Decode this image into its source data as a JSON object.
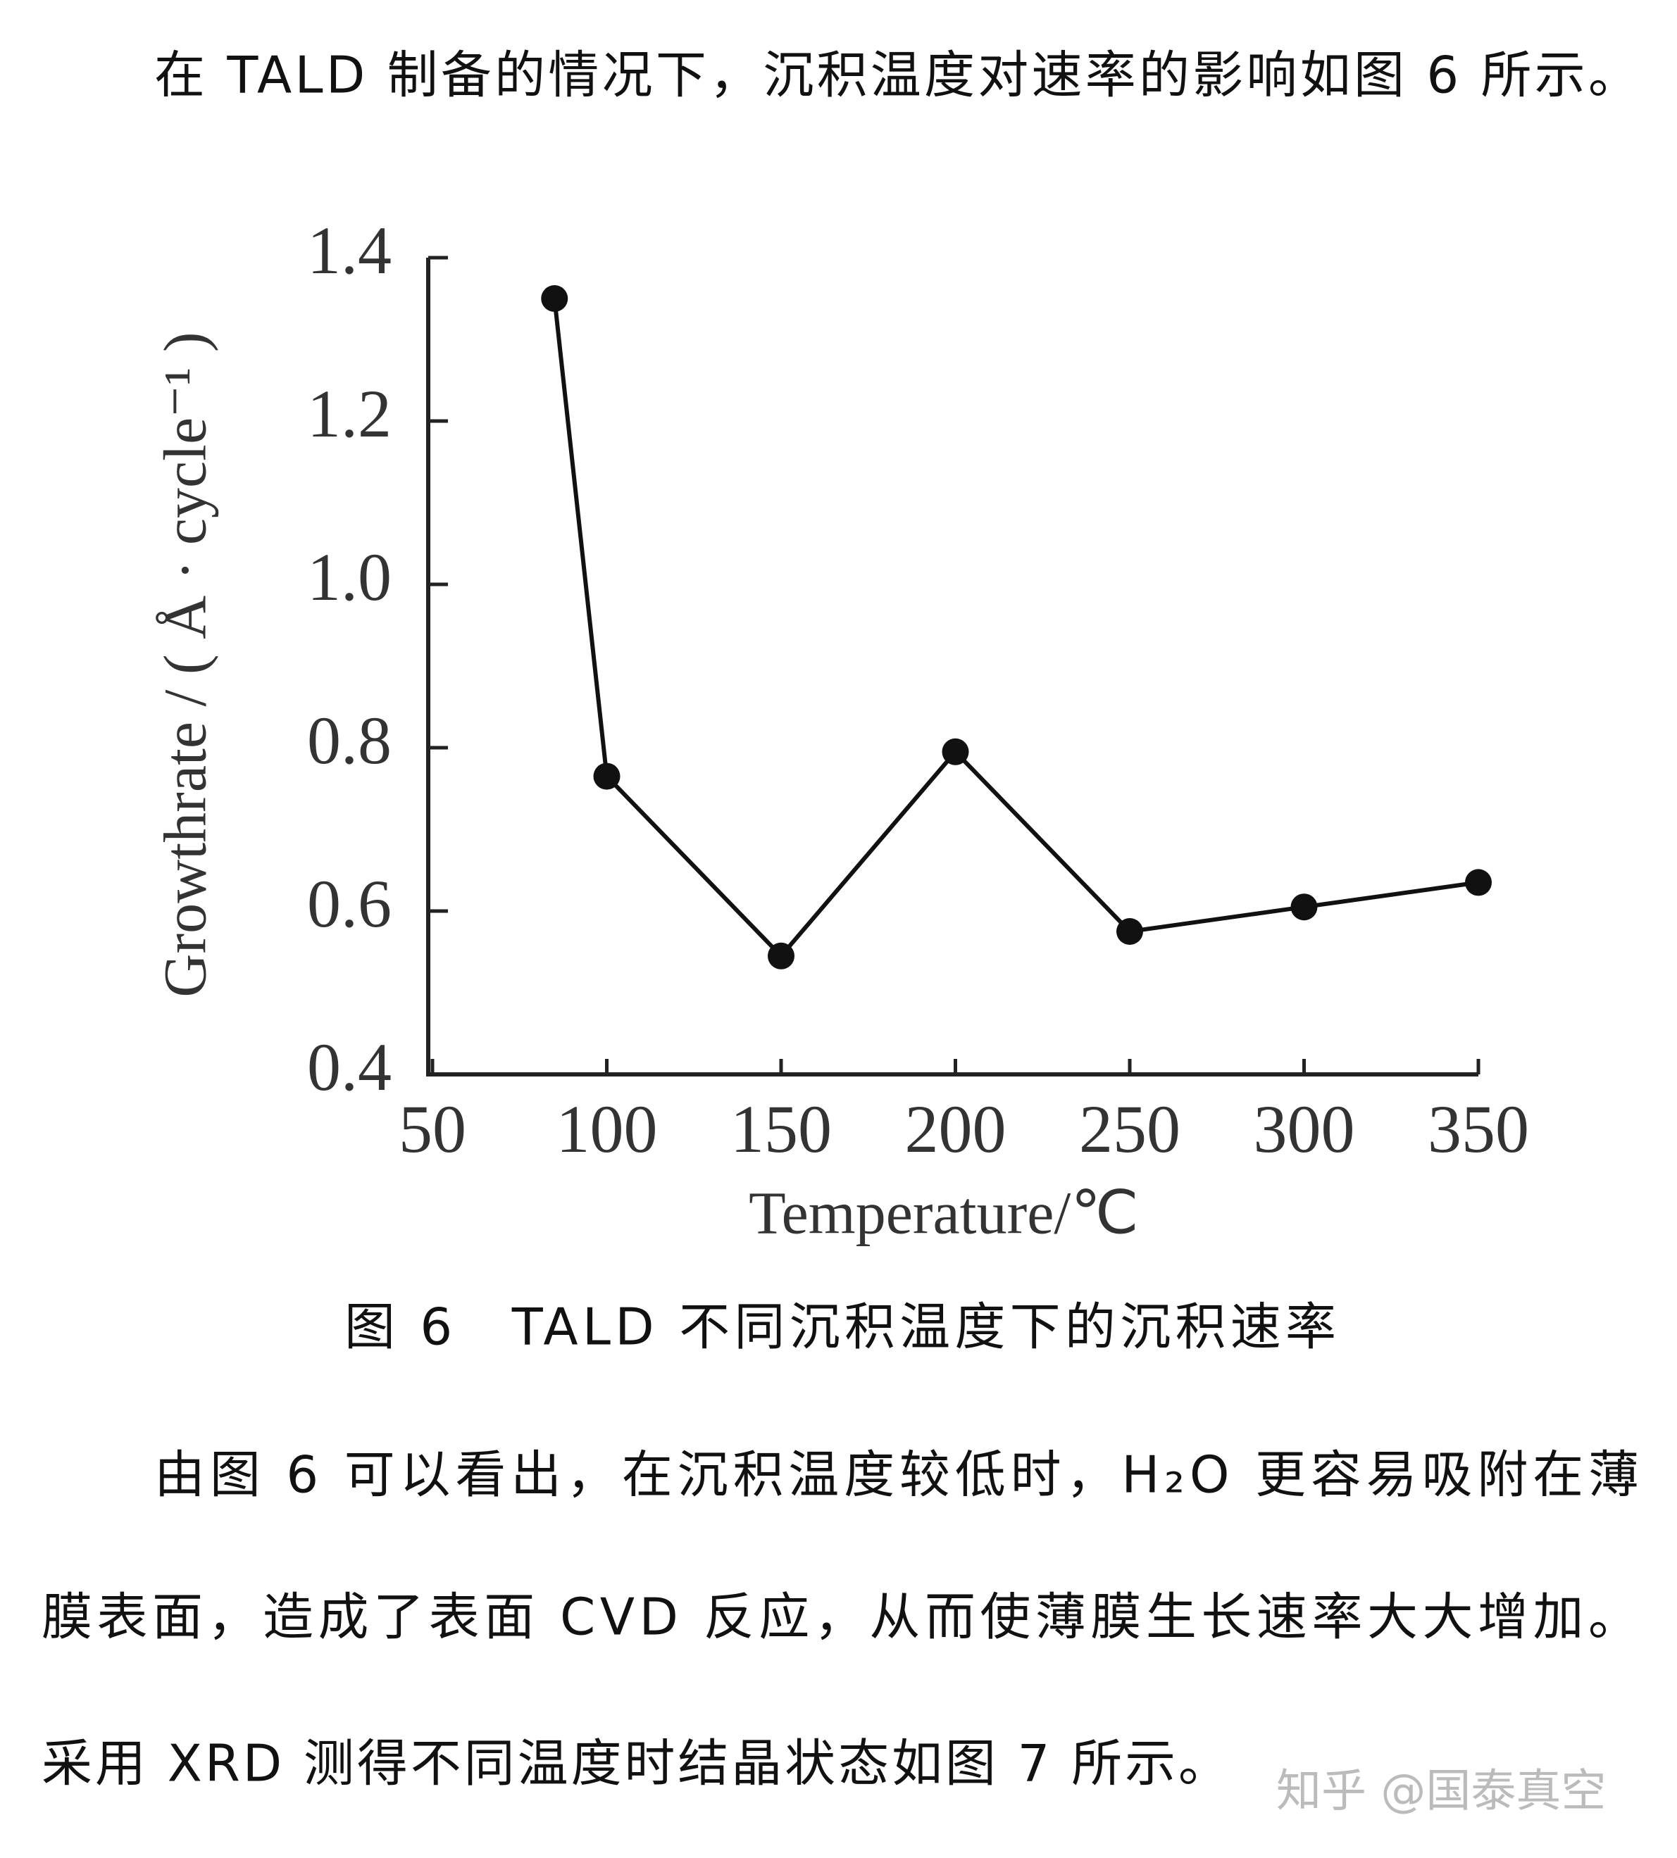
{
  "text": {
    "intro": "在 TALD 制备的情况下，沉积温度对速率的影响如图 6 所示。",
    "caption": "图 6　TALD 不同沉积温度下的沉积速率",
    "paragraph": [
      "由图 6 可以看出，在沉积温度较低时，H₂O 更容易吸附在薄",
      "膜表面，造成了表面 CVD 反应，从而使薄膜生长速率大大增加。",
      "采用 XRD 测得不同温度时结晶状态如图 7 所示。"
    ],
    "watermark": "知乎 @国泰真空"
  },
  "chart_data": {
    "type": "line",
    "x_label": "Temperature/℃",
    "y_label": "Growthrate / ( Å · cycle⁻¹ )",
    "x": [
      85,
      100,
      150,
      200,
      250,
      300,
      350
    ],
    "series": [
      {
        "color": "#111111",
        "values": [
          1.35,
          0.765,
          0.545,
          0.795,
          0.575,
          0.605,
          0.635
        ]
      }
    ],
    "xlim": [
      50,
      350
    ],
    "xticks": [
      50,
      100,
      150,
      200,
      250,
      300,
      350
    ],
    "ylim": [
      0.4,
      1.4
    ],
    "yticks": [
      0.4,
      0.6,
      0.8,
      {
        "value": 1,
        "label": "1.0"
      },
      1.2,
      1.4
    ]
  }
}
